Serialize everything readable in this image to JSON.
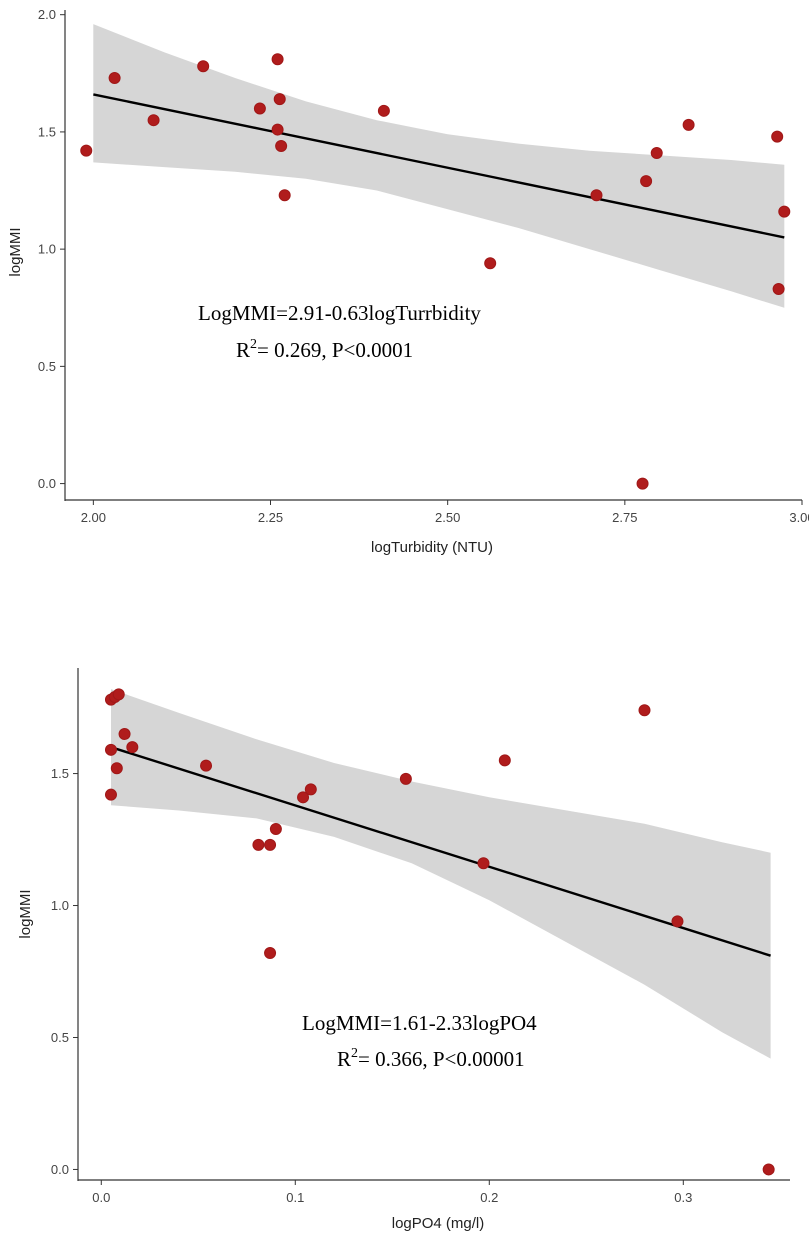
{
  "colors": {
    "point": "#b01c1c",
    "band": "#d6d6d6",
    "fit": "#000000",
    "axis": "#333333"
  },
  "chart_data": [
    {
      "type": "scatter",
      "xlabel": "logTurbidity (NTU)",
      "ylabel": "logMMI",
      "xlim": [
        1.96,
        3.0
      ],
      "ylim": [
        -0.07,
        2.02
      ],
      "x_ticks": [
        2.0,
        2.25,
        2.5,
        2.75,
        3.0
      ],
      "x_tick_labels": [
        "2.00",
        "2.25",
        "2.50",
        "2.75",
        "3.00"
      ],
      "y_ticks": [
        0.0,
        0.5,
        1.0,
        1.5,
        2.0
      ],
      "y_tick_labels": [
        "0.0",
        "0.5",
        "1.0",
        "1.5",
        "2.0"
      ],
      "annotation_line1": "LogMMI=2.91-0.63logTurrbidity",
      "annotation_r": "R",
      "annotation_sup": "2",
      "annotation_line2": "= 0.269, P<0.0001",
      "fit": {
        "x0": 2.0,
        "y0": 1.66,
        "x1": 2.975,
        "y1": 1.05
      },
      "band": {
        "x": [
          2.0,
          2.1,
          2.2,
          2.3,
          2.4,
          2.5,
          2.6,
          2.7,
          2.8,
          2.9,
          2.975
        ],
        "upper": [
          1.96,
          1.84,
          1.73,
          1.63,
          1.55,
          1.49,
          1.45,
          1.42,
          1.4,
          1.38,
          1.36
        ],
        "lower": [
          1.37,
          1.35,
          1.33,
          1.3,
          1.25,
          1.17,
          1.09,
          1.0,
          0.91,
          0.82,
          0.75
        ]
      },
      "points": [
        {
          "x": 1.99,
          "y": 1.42
        },
        {
          "x": 2.03,
          "y": 1.73
        },
        {
          "x": 2.085,
          "y": 1.55
        },
        {
          "x": 2.155,
          "y": 1.78
        },
        {
          "x": 2.235,
          "y": 1.6
        },
        {
          "x": 2.26,
          "y": 1.81
        },
        {
          "x": 2.263,
          "y": 1.64
        },
        {
          "x": 2.26,
          "y": 1.51
        },
        {
          "x": 2.265,
          "y": 1.44
        },
        {
          "x": 2.27,
          "y": 1.23
        },
        {
          "x": 2.41,
          "y": 1.59
        },
        {
          "x": 2.56,
          "y": 0.94
        },
        {
          "x": 2.71,
          "y": 1.23
        },
        {
          "x": 2.78,
          "y": 1.29
        },
        {
          "x": 2.795,
          "y": 1.41
        },
        {
          "x": 2.84,
          "y": 1.53
        },
        {
          "x": 2.965,
          "y": 1.48
        },
        {
          "x": 2.975,
          "y": 1.16
        },
        {
          "x": 2.967,
          "y": 0.83
        },
        {
          "x": 2.775,
          "y": 0.0
        }
      ]
    },
    {
      "type": "scatter",
      "xlabel": "logPO4 (mg/l)",
      "ylabel": "logMMI",
      "xlim": [
        -0.012,
        0.355
      ],
      "ylim": [
        -0.04,
        1.9
      ],
      "x_ticks": [
        0.0,
        0.1,
        0.2,
        0.3
      ],
      "x_tick_labels": [
        "0.0",
        "0.1",
        "0.2",
        "0.3"
      ],
      "y_ticks": [
        0.0,
        0.5,
        1.0,
        1.5
      ],
      "y_tick_labels": [
        "0.0",
        "0.5",
        "1.0",
        "1.5"
      ],
      "annotation_line1": "LogMMI=1.61-2.33logPO4",
      "annotation_r": "R",
      "annotation_sup": "2",
      "annotation_line2": "= 0.366, P<0.00001",
      "fit": {
        "x0": 0.005,
        "y0": 1.6,
        "x1": 0.345,
        "y1": 0.81
      },
      "band": {
        "x": [
          0.005,
          0.04,
          0.08,
          0.12,
          0.16,
          0.2,
          0.24,
          0.28,
          0.32,
          0.345
        ],
        "upper": [
          1.82,
          1.73,
          1.63,
          1.54,
          1.47,
          1.41,
          1.36,
          1.31,
          1.24,
          1.2
        ],
        "lower": [
          1.38,
          1.36,
          1.33,
          1.26,
          1.16,
          1.02,
          0.86,
          0.7,
          0.52,
          0.42
        ]
      },
      "points": [
        {
          "x": 0.005,
          "y": 1.78
        },
        {
          "x": 0.007,
          "y": 1.79
        },
        {
          "x": 0.009,
          "y": 1.8
        },
        {
          "x": 0.012,
          "y": 1.65
        },
        {
          "x": 0.016,
          "y": 1.6
        },
        {
          "x": 0.005,
          "y": 1.59
        },
        {
          "x": 0.008,
          "y": 1.52
        },
        {
          "x": 0.005,
          "y": 1.42
        },
        {
          "x": 0.054,
          "y": 1.53
        },
        {
          "x": 0.081,
          "y": 1.23
        },
        {
          "x": 0.087,
          "y": 1.23
        },
        {
          "x": 0.09,
          "y": 1.29
        },
        {
          "x": 0.104,
          "y": 1.41
        },
        {
          "x": 0.108,
          "y": 1.44
        },
        {
          "x": 0.087,
          "y": 0.82
        },
        {
          "x": 0.157,
          "y": 1.48
        },
        {
          "x": 0.197,
          "y": 1.16
        },
        {
          "x": 0.208,
          "y": 1.55
        },
        {
          "x": 0.28,
          "y": 1.74
        },
        {
          "x": 0.297,
          "y": 0.94
        },
        {
          "x": 0.344,
          "y": 0.0
        }
      ]
    }
  ]
}
